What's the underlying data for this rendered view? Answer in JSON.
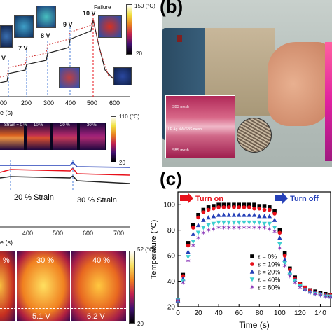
{
  "panel_a_top": {
    "voltage_labels": [
      "V",
      "7 V",
      "8 V",
      "9 V",
      "10 V"
    ],
    "failure_label": "Failure",
    "colorbar_max": "150 (°C)",
    "colorbar_min": "20",
    "x_ticks": [
      "00",
      "200",
      "300",
      "400",
      "500",
      "600"
    ],
    "x_label": "e (s)"
  },
  "panel_a_mid": {
    "strain_labels": [
      "Strain = 0 %",
      "10 %",
      "20 %",
      "30 %"
    ],
    "colorbar_max": "110 (°C)",
    "colorbar_min": "20",
    "strain_20": "20 % Strain",
    "strain_30": "30 % Strain",
    "x_ticks": [
      "400",
      "500",
      "600",
      "700"
    ],
    "x_label": "e (s)"
  },
  "panel_a_bottom": {
    "strain_labels": [
      "%",
      "30 %",
      "40 %"
    ],
    "voltage_labels": [
      "5.1 V",
      "6.2 V"
    ],
    "colorbar_max": "52 (°C)",
    "colorbar_min": "20"
  },
  "panel_b": {
    "label": "(b)",
    "inset_texts": [
      "SBS mesh",
      "LE Ag NW/SBS mesh",
      "SBS mesh"
    ]
  },
  "chart_data": {
    "type": "scatter",
    "panel_label": "(c)",
    "xlabel": "Time (s)",
    "ylabel": "Temperature (°C)",
    "xlim": [
      0,
      150
    ],
    "ylim": [
      20,
      110
    ],
    "x_ticks": [
      0,
      20,
      40,
      60,
      80,
      100,
      120,
      140
    ],
    "y_ticks": [
      20,
      40,
      60,
      80,
      100
    ],
    "annotations": [
      "Turn on",
      "Turn off"
    ],
    "x": [
      0,
      5,
      10,
      15,
      20,
      25,
      30,
      35,
      40,
      45,
      50,
      55,
      60,
      65,
      70,
      75,
      80,
      85,
      90,
      95,
      100,
      105,
      110,
      115,
      120,
      125,
      130,
      135,
      140,
      145,
      150
    ],
    "series": [
      {
        "name": "ε = 0%",
        "marker": "square",
        "color": "#000000",
        "values": [
          25,
          45,
          70,
          84,
          92,
          96,
          98,
          99,
          100,
          100,
          100,
          100,
          100,
          100,
          100,
          100,
          99,
          99,
          98,
          95,
          80,
          62,
          50,
          43,
          38,
          35,
          33,
          32,
          31,
          30,
          29
        ]
      },
      {
        "name": "ε = 10%",
        "marker": "circle",
        "color": "#e8101a",
        "values": [
          25,
          44,
          68,
          82,
          90,
          94,
          96,
          97,
          98,
          98,
          98,
          98,
          98,
          98,
          98,
          97,
          97,
          96,
          96,
          93,
          78,
          60,
          49,
          42,
          38,
          35,
          33,
          31,
          30,
          29,
          29
        ]
      },
      {
        "name": "ε = 20%",
        "marker": "triangle-up",
        "color": "#2540b8",
        "values": [
          25,
          42,
          63,
          77,
          84,
          88,
          90,
          91,
          92,
          92,
          92,
          92,
          92,
          92,
          92,
          92,
          91,
          91,
          91,
          88,
          74,
          57,
          47,
          41,
          37,
          34,
          32,
          31,
          30,
          29,
          28
        ]
      },
      {
        "name": "ε = 40%",
        "marker": "triangle-down",
        "color": "#3dcfd0",
        "values": [
          25,
          40,
          59,
          71,
          78,
          82,
          84,
          85,
          86,
          86,
          86,
          86,
          86,
          86,
          86,
          86,
          86,
          85,
          85,
          82,
          69,
          54,
          45,
          40,
          36,
          33,
          31,
          30,
          29,
          28,
          28
        ]
      },
      {
        "name": "ε = 80%",
        "marker": "star",
        "color": "#8b38b8",
        "values": [
          25,
          39,
          56,
          68,
          74,
          78,
          80,
          81,
          82,
          82,
          82,
          82,
          82,
          82,
          82,
          82,
          82,
          82,
          81,
          79,
          66,
          52,
          44,
          39,
          35,
          33,
          31,
          30,
          29,
          28,
          28
        ]
      }
    ]
  }
}
